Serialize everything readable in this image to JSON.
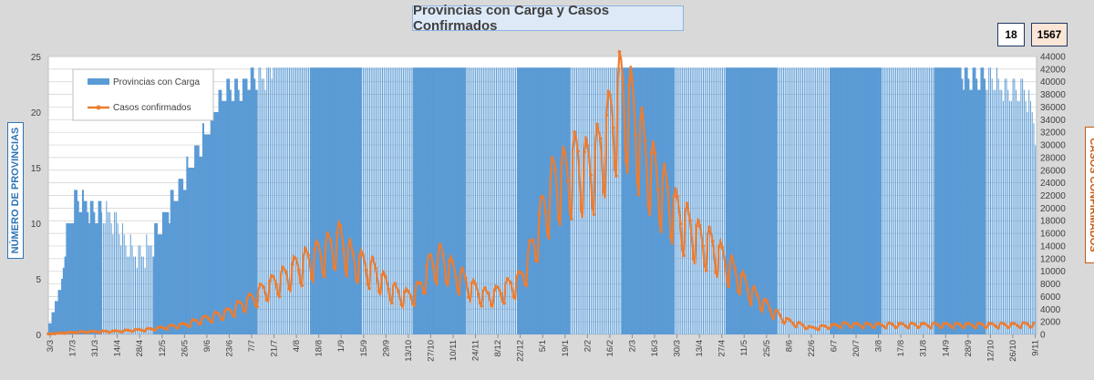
{
  "title": "Provincias con Carga y Casos Confirmados",
  "badges": {
    "provinces": "18",
    "cases": "1567"
  },
  "colors": {
    "bars": "#5b9bd5",
    "line": "#ed7d31",
    "grid": "#d0d0d0"
  },
  "chart_data": {
    "type": "bar+line",
    "title": "Provincias con Carga y Casos Confirmados",
    "ylabel_left": "NÚMERO DE PROVINCIAS",
    "ylabel_right": "CASOS CONFIRMADOS",
    "y_left": {
      "min": 0,
      "max": 25,
      "ticks": [
        "0",
        "5",
        "10",
        "15",
        "20",
        "25"
      ]
    },
    "y_right": {
      "min": 0,
      "max": 44000,
      "ticks": [
        "0",
        "2000",
        "4000",
        "6000",
        "8000",
        "10000",
        "12000",
        "14000",
        "16000",
        "18000",
        "20000",
        "22000",
        "24000",
        "26000",
        "28000",
        "30000",
        "32000",
        "34000",
        "36000",
        "38000",
        "40000",
        "42000",
        "44000"
      ]
    },
    "x_ticks": [
      "3/3",
      "17/3",
      "31/3",
      "14/4",
      "28/4",
      "12/5",
      "26/5",
      "9/6",
      "23/6",
      "7/7",
      "21/7",
      "4/8",
      "18/8",
      "1/9",
      "15/9",
      "29/9",
      "13/10",
      "27/10",
      "10/11",
      "24/11",
      "8/12",
      "22/12",
      "5/1",
      "19/1",
      "2/2",
      "16/2",
      "2/3",
      "16/3",
      "30/3",
      "13/4",
      "27/4",
      "11/5",
      "25/5",
      "8/6",
      "22/6",
      "6/7",
      "20/7",
      "3/8",
      "17/8",
      "31/8",
      "14/9",
      "28/9",
      "12/10",
      "26/10",
      "9/11"
    ],
    "legend": [
      "Provincias con Carga",
      "Casos confirmados"
    ],
    "month_shading": [
      "solid",
      "hatched",
      "solid",
      "solid",
      "hatched",
      "solid",
      "hatched",
      "solid",
      "hatched",
      "solid",
      "hatched",
      "solid",
      "hatched",
      "solid",
      "hatched",
      "solid",
      "hatched",
      "solid",
      "hatched"
    ],
    "series": [
      {
        "name": "Provincias con Carga",
        "kind": "bar",
        "axis": "left",
        "key_days": [
          0,
          7,
          10,
          16,
          21,
          28,
          35,
          42,
          49,
          56,
          63,
          70,
          77,
          84,
          91,
          98,
          105,
          112,
          119,
          126,
          133,
          140,
          147,
          154,
          161,
          168,
          175,
          182,
          189,
          196,
          203,
          210,
          217,
          224,
          231,
          238,
          245,
          252,
          259,
          266,
          273,
          280,
          287,
          294,
          301,
          308,
          315,
          322,
          329,
          336,
          343,
          350,
          357,
          364,
          371,
          378,
          385,
          392,
          399,
          406,
          413,
          420,
          427,
          434,
          441,
          448,
          455,
          462,
          469,
          476,
          483,
          490,
          497,
          504,
          511,
          518,
          525,
          532,
          539,
          546,
          553,
          560,
          567,
          574,
          581,
          588,
          595,
          602,
          609,
          616
        ],
        "values": [
          1,
          4,
          8,
          12,
          12,
          11,
          11,
          10,
          8,
          7,
          8,
          10,
          12,
          14,
          16,
          18,
          21,
          22,
          22,
          23,
          23,
          24,
          24,
          24,
          24,
          24,
          24,
          24,
          24,
          24,
          24,
          24,
          24,
          24,
          24,
          24,
          24,
          24,
          24,
          24,
          24,
          24,
          24,
          24,
          24,
          24,
          24,
          24,
          24,
          24,
          24,
          24,
          24,
          24,
          24,
          24,
          24,
          24,
          24,
          24,
          24,
          24,
          24,
          24,
          24,
          24,
          24,
          24,
          24,
          24,
          24,
          24,
          24,
          24,
          24,
          24,
          24,
          24,
          24,
          24,
          24,
          24,
          24,
          23,
          23,
          23,
          22,
          22,
          22,
          18
        ]
      },
      {
        "name": "Casos confirmados",
        "kind": "line",
        "axis": "right",
        "key_days": [
          0,
          21,
          42,
          63,
          84,
          98,
          112,
          126,
          133,
          140,
          147,
          154,
          161,
          168,
          175,
          182,
          189,
          196,
          203,
          210,
          217,
          224,
          231,
          238,
          245,
          252,
          259,
          266,
          273,
          280,
          287,
          294,
          301,
          308,
          315,
          322,
          329,
          336,
          343,
          350,
          357,
          364,
          371,
          378,
          385,
          392,
          399,
          406,
          413,
          420,
          427,
          434,
          441,
          448,
          455,
          462,
          469,
          476,
          483,
          490,
          497,
          504,
          511,
          518,
          525,
          532,
          539,
          546,
          553,
          560,
          567,
          574,
          581,
          588,
          595,
          602,
          609,
          616
        ],
        "values": [
          100,
          400,
          500,
          800,
          1500,
          2500,
          3500,
          5500,
          6800,
          8000,
          9000,
          10500,
          11500,
          12500,
          13500,
          15000,
          12000,
          11000,
          10000,
          8000,
          6500,
          6000,
          7000,
          11000,
          12000,
          10000,
          8500,
          7000,
          6000,
          6500,
          7500,
          8500,
          13000,
          19000,
          24000,
          25000,
          27000,
          26000,
          28000,
          33000,
          38000,
          35000,
          29000,
          25000,
          22000,
          19000,
          17000,
          15000,
          14000,
          12000,
          10000,
          8000,
          6000,
          4500,
          3000,
          2000,
          1500,
          1000,
          1200,
          1400,
          1600,
          1500,
          1500,
          1500,
          1500,
          1500,
          1500,
          1500,
          1500,
          1500,
          1500,
          1500,
          1500,
          1500,
          1500,
          1500,
          1567,
          1567
        ]
      }
    ]
  }
}
